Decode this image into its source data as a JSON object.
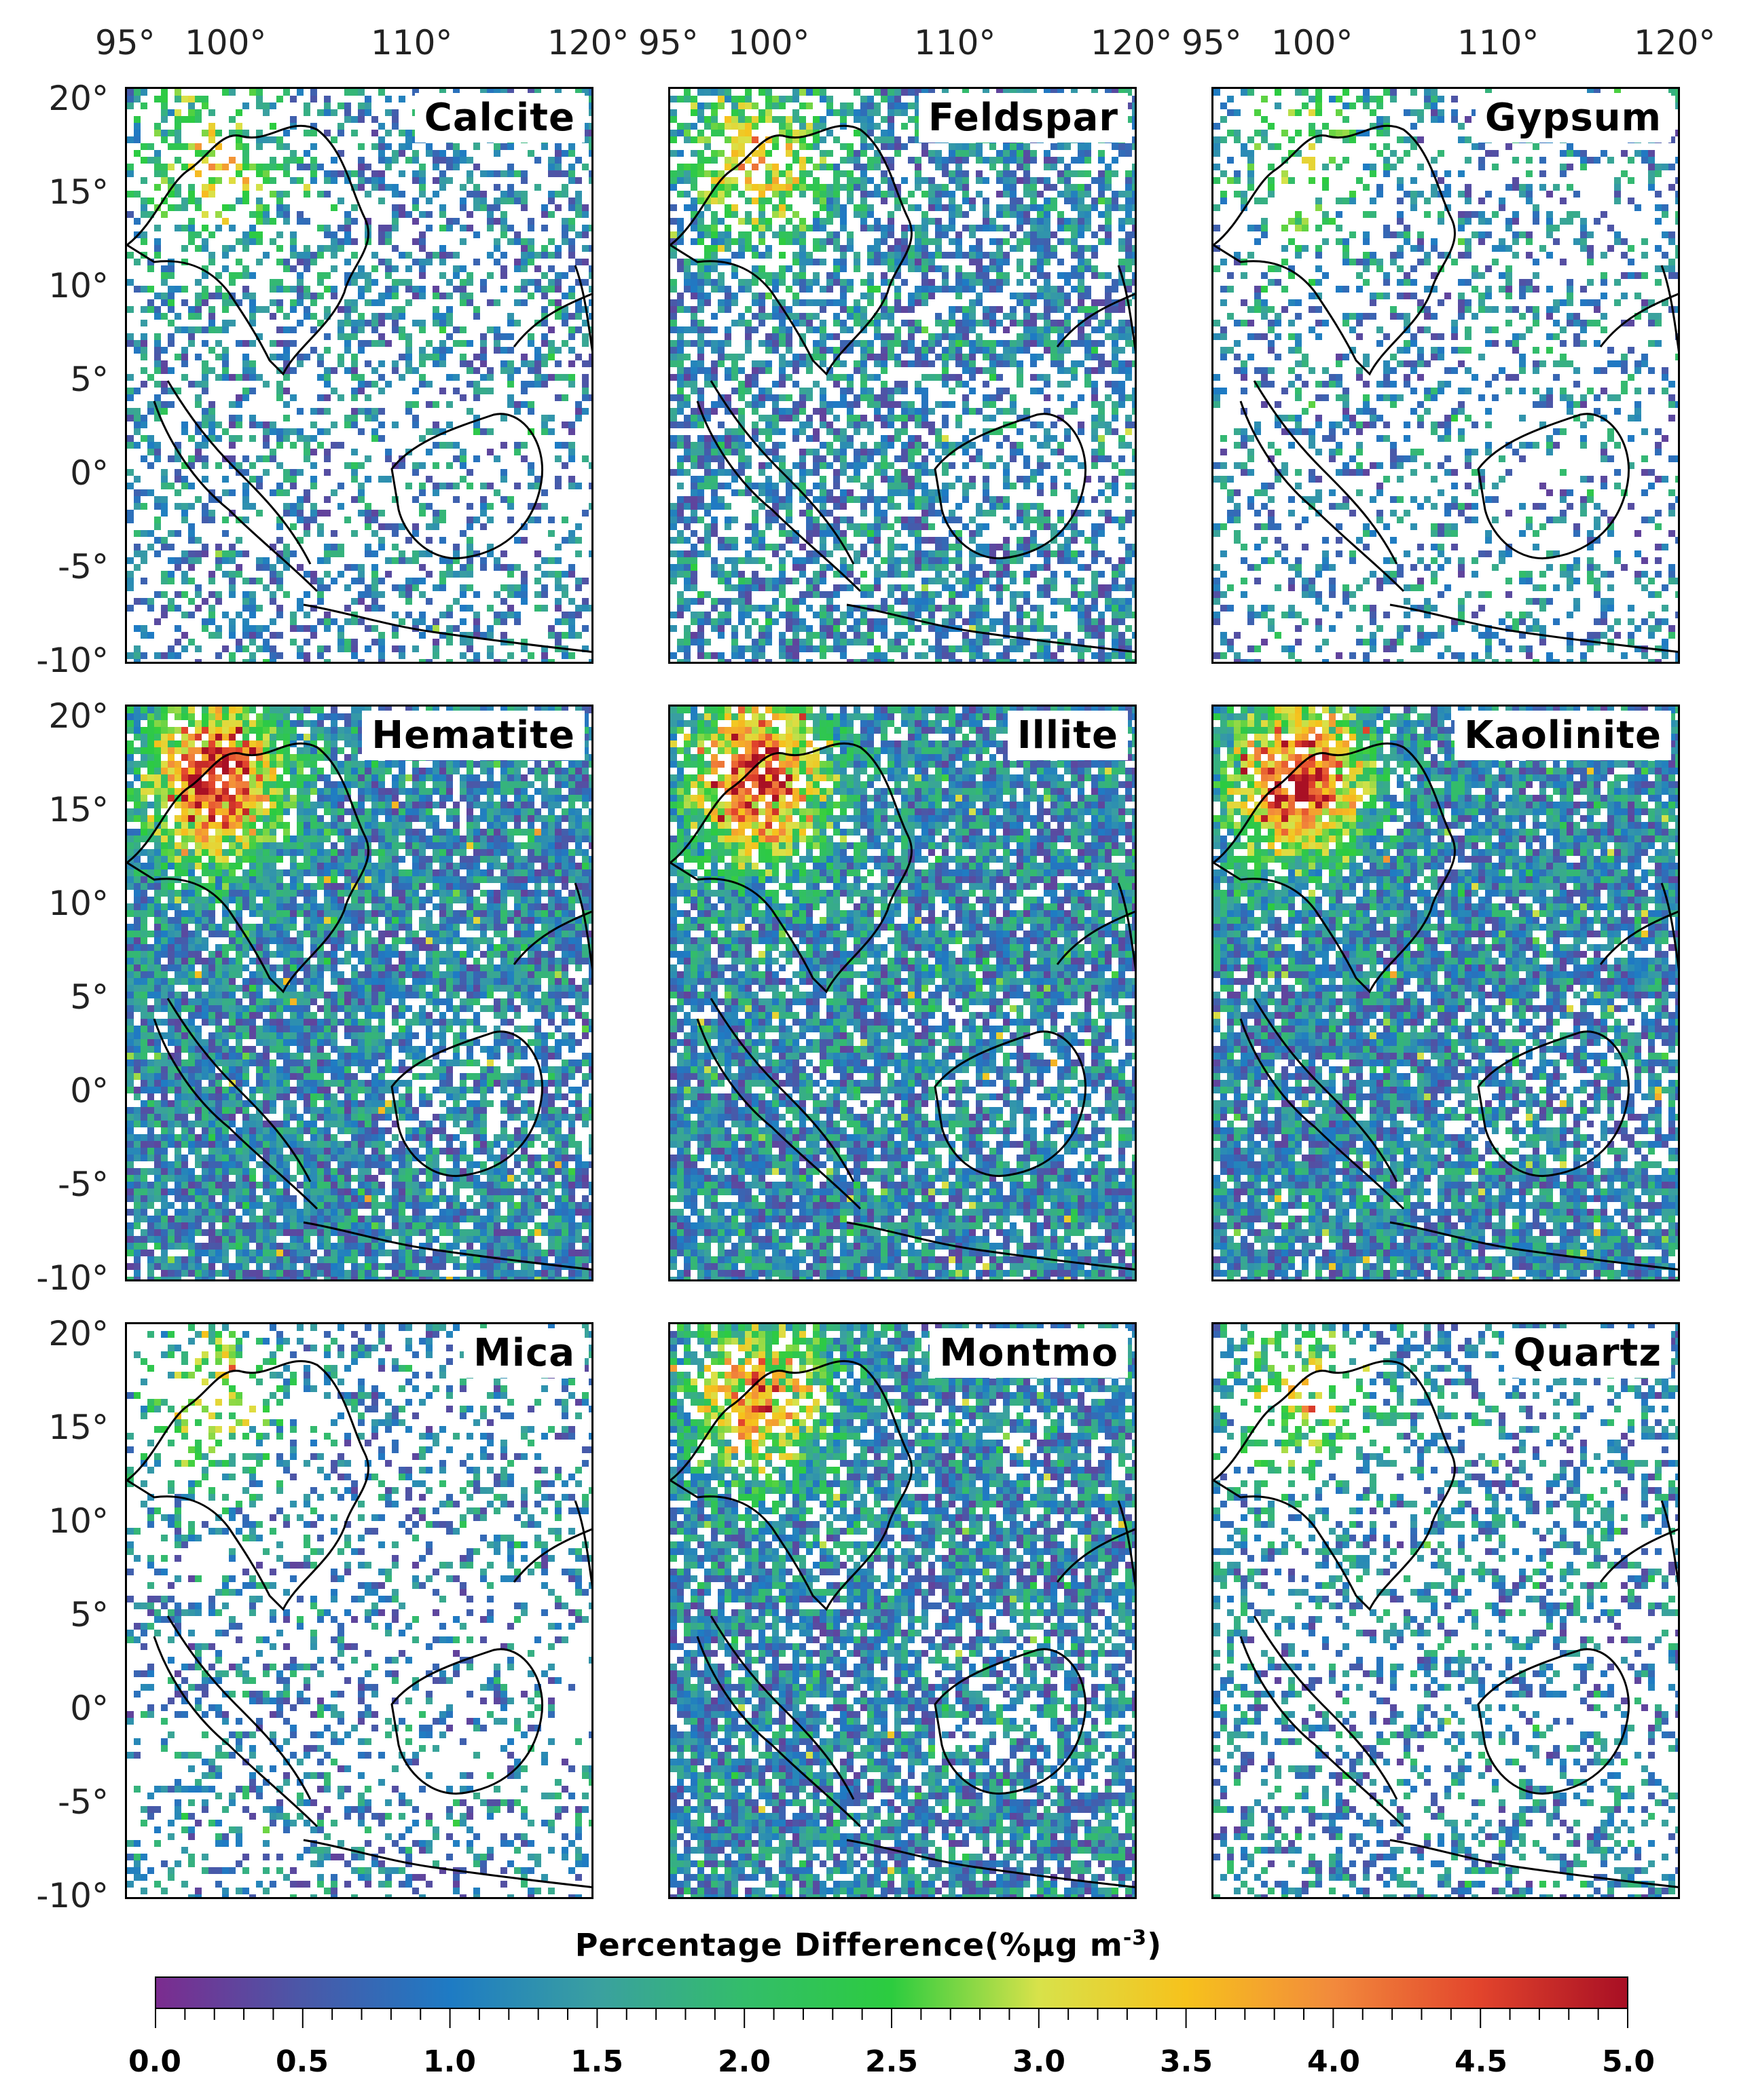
{
  "panels": [
    {
      "title": "Calcite",
      "density": 0.38,
      "intensity": 0.35
    },
    {
      "title": "Feldspar",
      "density": 0.62,
      "intensity": 0.4
    },
    {
      "title": "Gypsum",
      "density": 0.3,
      "intensity": 0.3
    },
    {
      "title": "Hematite",
      "density": 0.86,
      "intensity": 0.65
    },
    {
      "title": "Illite",
      "density": 0.86,
      "intensity": 0.62
    },
    {
      "title": "Kaolinite",
      "density": 0.86,
      "intensity": 0.64
    },
    {
      "title": "Mica",
      "density": 0.28,
      "intensity": 0.32
    },
    {
      "title": "Montmo",
      "density": 0.78,
      "intensity": 0.48
    },
    {
      "title": "Quartz",
      "density": 0.36,
      "intensity": 0.33
    }
  ],
  "longitude_ticks": [
    "95°",
    "100°",
    "110°",
    "120°"
  ],
  "latitude_ticks": [
    "20°",
    "15°",
    "10°",
    "5°",
    "0°",
    "-5°",
    "-10°"
  ],
  "colorbar": {
    "title": "Percentage Difference(%μg m",
    "title_sup": "-3",
    "title_close": ")",
    "min": 0.0,
    "max": 5.0,
    "labels": [
      "0.0",
      "0.5",
      "1.0",
      "1.5",
      "2.0",
      "2.5",
      "3.0",
      "3.5",
      "4.0",
      "4.5",
      "5.0"
    ],
    "colors": [
      "#7b2c8f",
      "#4a58a8",
      "#1e7bc4",
      "#3aa0a0",
      "#33bd6a",
      "#2ccc3f",
      "#d8e24a",
      "#f6c21c",
      "#f28a3c",
      "#e2442c",
      "#a80f24"
    ]
  }
}
